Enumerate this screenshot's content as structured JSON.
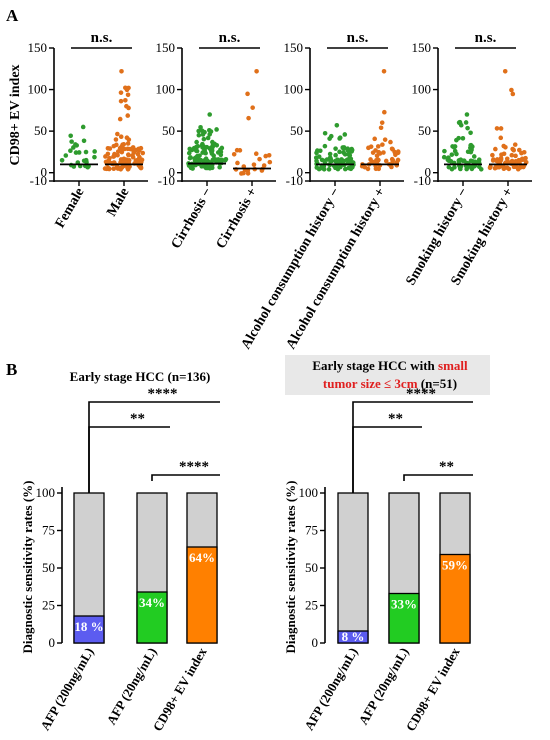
{
  "panel_labels": {
    "a": "A",
    "b": "B"
  },
  "chart_data": [
    {
      "type": "scatter",
      "panel": "A",
      "ylabel": "CD98+ EV index",
      "ylim": [
        -10,
        150
      ],
      "yticks": [
        -10,
        0,
        50,
        100,
        150
      ],
      "groups": [
        {
          "significance": "n.s.",
          "categories": [
            "Female",
            "Male"
          ],
          "series_colors": [
            "#2e9b2e",
            "#e0701a"
          ],
          "medians": [
            10,
            10
          ],
          "n": [
            25,
            110
          ],
          "spread_max": [
            55,
            122
          ]
        },
        {
          "significance": "n.s.",
          "categories": [
            "Cirrhosis −",
            "Cirrhosis +"
          ],
          "series_colors": [
            "#2e9b2e",
            "#e0701a"
          ],
          "medians": [
            11,
            5
          ],
          "n": [
            110,
            25
          ],
          "spread_max": [
            70,
            122
          ]
        },
        {
          "significance": "n.s.",
          "categories": [
            "Alcohol consumption history −",
            "Alcohol consumption history +"
          ],
          "series_colors": [
            "#2e9b2e",
            "#e0701a"
          ],
          "medians": [
            10,
            10
          ],
          "n": [
            85,
            50
          ],
          "spread_max": [
            57,
            122
          ]
        },
        {
          "significance": "n.s.",
          "categories": [
            "Smoking history −",
            "Smoking history +"
          ],
          "series_colors": [
            "#2e9b2e",
            "#e0701a"
          ],
          "medians": [
            10,
            10
          ],
          "n": [
            65,
            70
          ],
          "spread_max": [
            70,
            122
          ]
        }
      ]
    },
    {
      "type": "bar",
      "panel": "B",
      "title_parts": [
        {
          "text": "Early stage HCC (n=136)",
          "highlight": false
        }
      ],
      "ylabel": "Diagnostic sensitivity rates (%)",
      "ylim": [
        0,
        100
      ],
      "yticks": [
        0,
        25,
        50,
        75,
        100
      ],
      "categories": [
        "AFP (200ng/mL)",
        "AFP (20ng/mL)",
        "CD98+ EV index"
      ],
      "values": [
        18,
        34,
        64
      ],
      "value_labels": [
        "18 %",
        "34%",
        "64%"
      ],
      "colors": [
        "#5c5cf0",
        "#22cc22",
        "#ff8000"
      ],
      "background_color": "#d0d0d0",
      "comparisons": [
        {
          "from": 0,
          "to": 2,
          "label": "****"
        },
        {
          "from": 0,
          "to": 1,
          "label": "**"
        },
        {
          "from": 1,
          "to": 2,
          "label": "****"
        }
      ]
    },
    {
      "type": "bar",
      "panel": "B",
      "title_parts": [
        {
          "text": "Early stage HCC with ",
          "highlight": false
        },
        {
          "text": "small",
          "highlight": true
        },
        {
          "text": "tumor size ≤ 3cm",
          "highlight": true
        },
        {
          "text": " (n=51)",
          "highlight": false
        }
      ],
      "ylabel": "Diagnostic sensitivity rates (%)",
      "ylim": [
        0,
        100
      ],
      "yticks": [
        0,
        25,
        50,
        75,
        100
      ],
      "categories": [
        "AFP (200ng/mL)",
        "AFP (20ng/mL)",
        "CD98+ EV index"
      ],
      "values": [
        8,
        33,
        59
      ],
      "value_labels": [
        "8 %",
        "33%",
        "59%"
      ],
      "colors": [
        "#5c5cf0",
        "#22cc22",
        "#ff8000"
      ],
      "background_color": "#d0d0d0",
      "comparisons": [
        {
          "from": 0,
          "to": 2,
          "label": "****"
        },
        {
          "from": 0,
          "to": 1,
          "label": "**"
        },
        {
          "from": 1,
          "to": 2,
          "label": "**"
        }
      ]
    }
  ],
  "colors": {
    "title_highlight": "#e02020",
    "title_box_bg": "#e8e8e8",
    "median_line": "#000000"
  }
}
